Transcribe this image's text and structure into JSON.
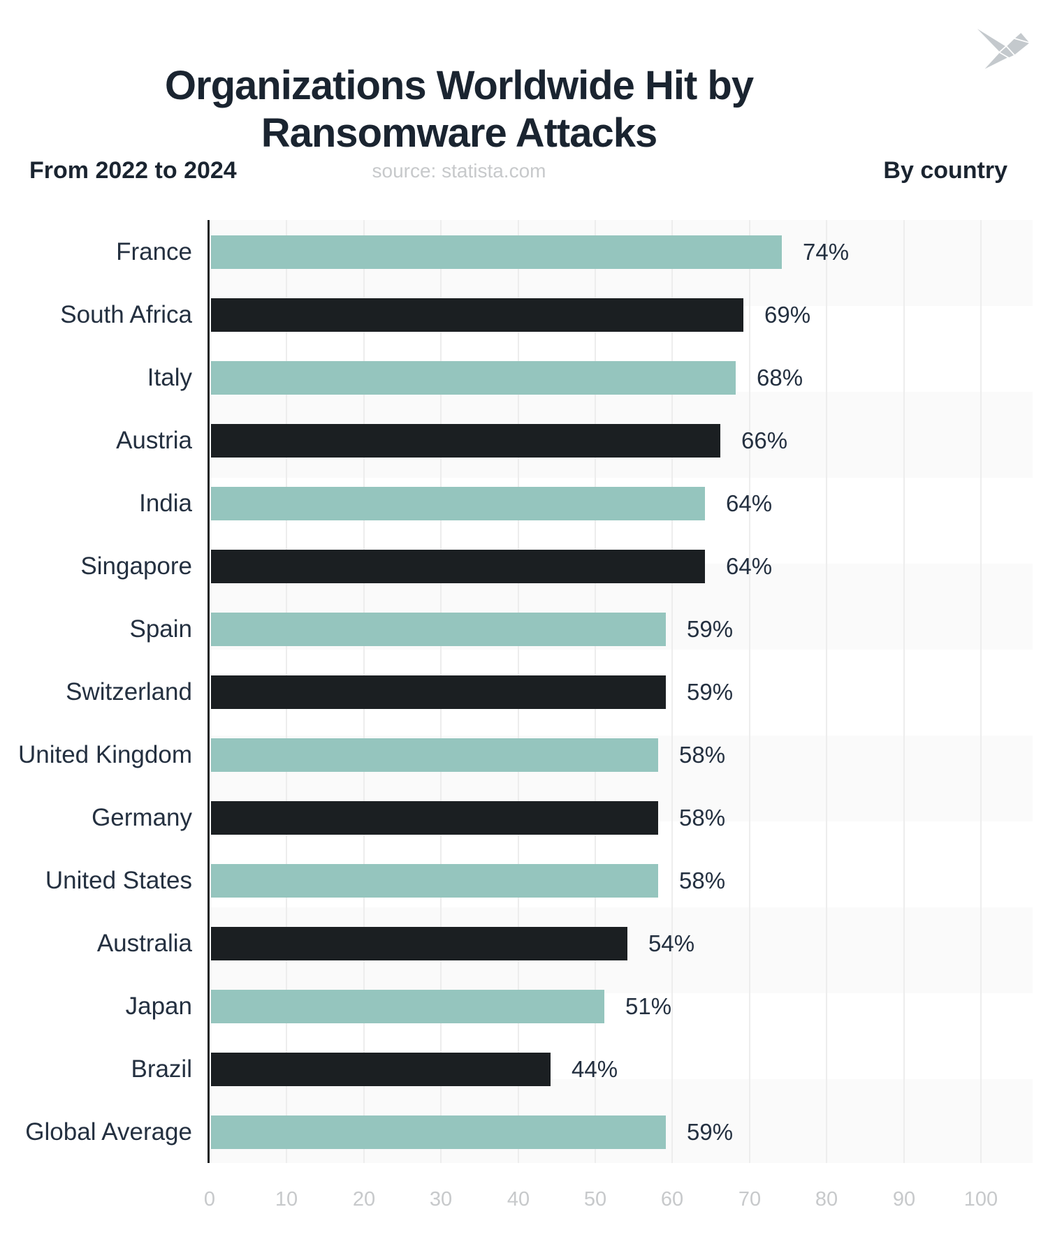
{
  "title": {
    "line1": "Organizations Worldwide Hit by",
    "line2": "Ransomware Attacks"
  },
  "subtitle_left": "From 2022 to 2024",
  "source": "source: statista.com",
  "subtitle_right": "By country",
  "colors": {
    "teal_bar": "#95c5be",
    "dark_bar": "#1b1f22",
    "title_text": "#1a2430",
    "label_text": "#243040",
    "muted_text": "#c7c9cb",
    "band_gray": "#fafafa",
    "gridline": "#ededed",
    "logo_gray": "#c4c9cd"
  },
  "chart_data": {
    "type": "bar",
    "orientation": "horizontal",
    "title": "Organizations Worldwide Hit by Ransomware Attacks",
    "subtitle": "From 2022 to 2024",
    "note": "By country",
    "source": "source: statista.com",
    "categories": [
      "France",
      "South Africa",
      "Italy",
      "Austria",
      "India",
      "Singapore",
      "Spain",
      "Switzerland",
      "United Kingdom",
      "Germany",
      "United States",
      "Australia",
      "Japan",
      "Brazil",
      "Global Average"
    ],
    "values": [
      74,
      69,
      68,
      66,
      64,
      64,
      59,
      59,
      58,
      58,
      58,
      54,
      51,
      44,
      59
    ],
    "value_suffix": "%",
    "xlim": [
      0,
      100
    ],
    "x_ticks": [
      0,
      10,
      20,
      30,
      40,
      50,
      60,
      70,
      80,
      90,
      100
    ],
    "grid": true,
    "legend": "none",
    "bar_color_pattern": "alternating teal / dark per row"
  }
}
